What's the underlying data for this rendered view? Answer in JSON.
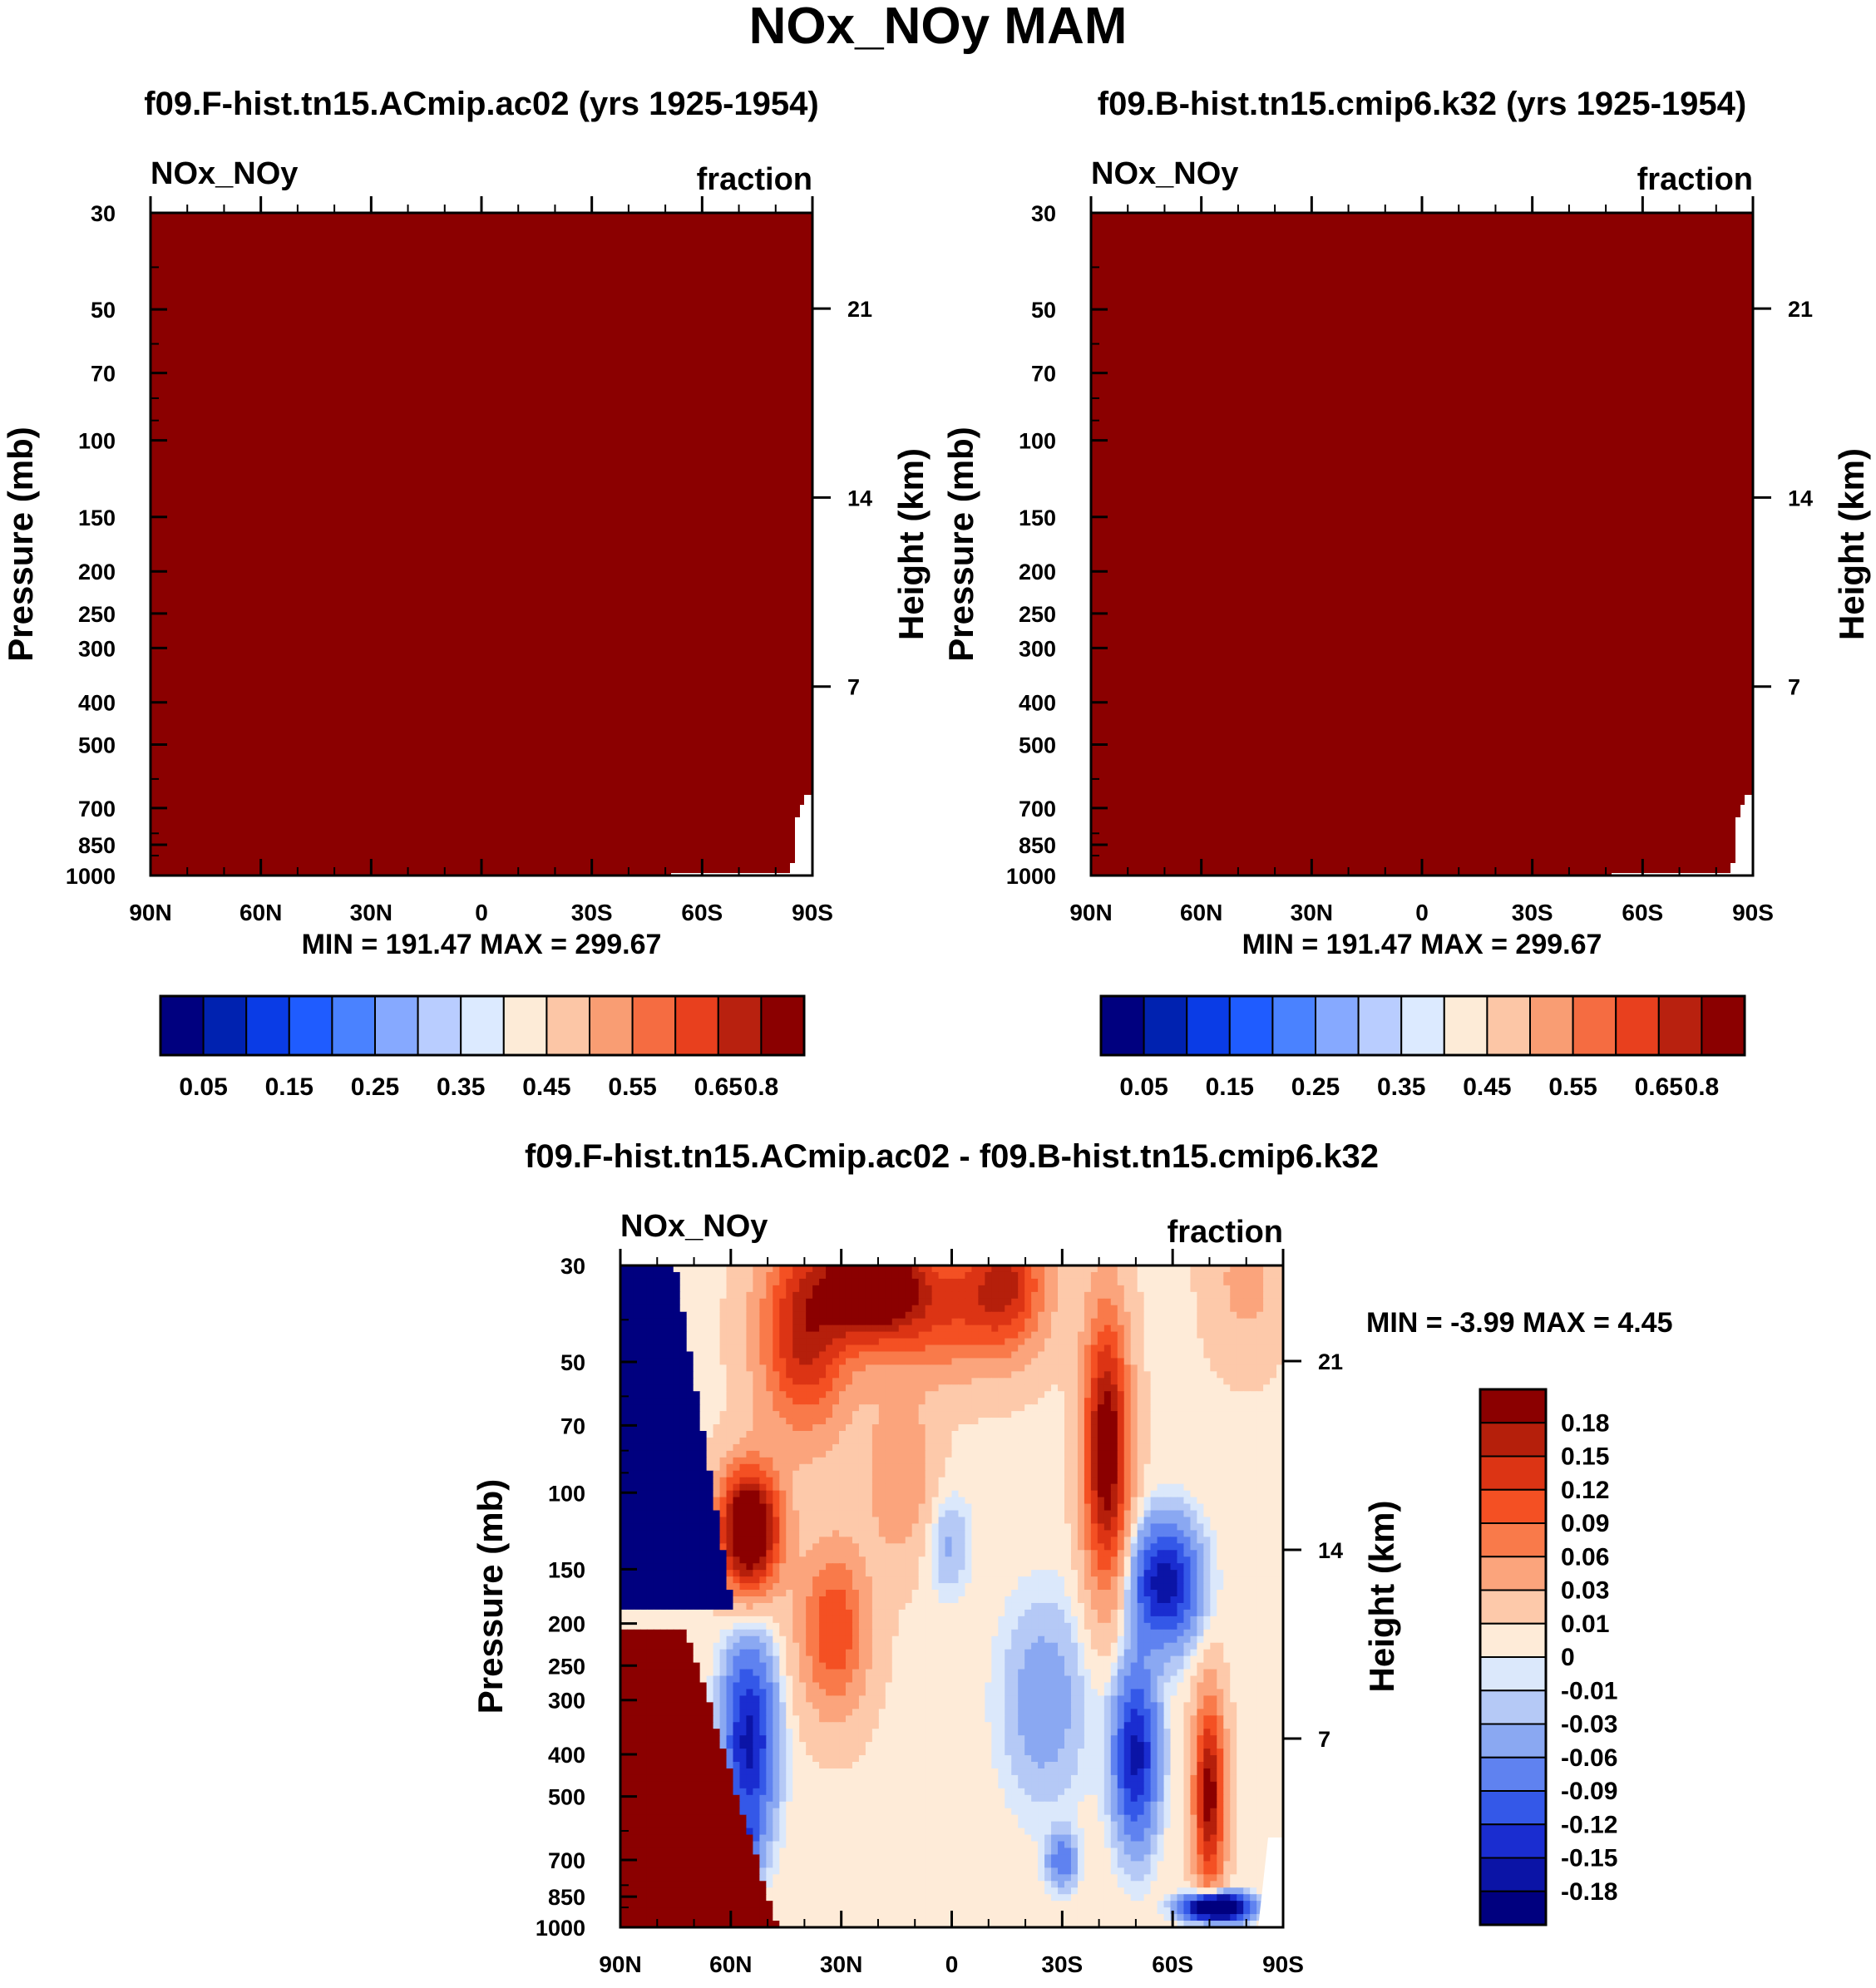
{
  "page_title": "NOx_NOy MAM",
  "chart_data": [
    {
      "type": "heatmap",
      "title": "f09.F-hist.tn15.ACmip.ac02 (yrs 1925-1954)",
      "left_label": "NOx_NOy",
      "right_label": "fraction",
      "ylabel": "Pressure (mb)",
      "ylabel_right": "Height (km)",
      "x_ticks": [
        "90N",
        "60N",
        "30N",
        "0",
        "30S",
        "60S",
        "90S"
      ],
      "y_ticks": [
        "30",
        "50",
        "70",
        "100",
        "150",
        "200",
        "250",
        "300",
        "400",
        "500",
        "700",
        "850",
        "1000"
      ],
      "height_ticks": [
        "21",
        "14",
        "7"
      ],
      "min_max": "MIN = 191.47  MAX = 299.67",
      "fill_color": "#8b0000",
      "colorbar_labels": [
        "0.05",
        "0.15",
        "0.25",
        "0.35",
        "0.45",
        "0.55",
        "0.65",
        "0.8"
      ]
    },
    {
      "type": "heatmap",
      "title": "f09.B-hist.tn15.cmip6.k32 (yrs 1925-1954)",
      "left_label": "NOx_NOy",
      "right_label": "fraction",
      "ylabel": "Pressure (mb)",
      "ylabel_right": "Height (km)",
      "x_ticks": [
        "90N",
        "60N",
        "30N",
        "0",
        "30S",
        "60S",
        "90S"
      ],
      "y_ticks": [
        "30",
        "50",
        "70",
        "100",
        "150",
        "200",
        "250",
        "300",
        "400",
        "500",
        "700",
        "850",
        "1000"
      ],
      "height_ticks": [
        "21",
        "14",
        "7"
      ],
      "min_max": "MIN = 191.47  MAX = 299.67",
      "fill_color": "#8b0000",
      "colorbar_labels": [
        "0.05",
        "0.15",
        "0.25",
        "0.35",
        "0.45",
        "0.55",
        "0.65",
        "0.8"
      ]
    },
    {
      "type": "heatmap",
      "title": "f09.F-hist.tn15.ACmip.ac02 - f09.B-hist.tn15.cmip6.k32",
      "left_label": "NOx_NOy",
      "right_label": "fraction",
      "ylabel": "Pressure (mb)",
      "ylabel_right": "Height (km)",
      "x_ticks": [
        "90N",
        "60N",
        "30N",
        "0",
        "30S",
        "60S",
        "90S"
      ],
      "y_ticks": [
        "30",
        "50",
        "70",
        "100",
        "150",
        "200",
        "250",
        "300",
        "400",
        "500",
        "700",
        "850",
        "1000"
      ],
      "height_ticks": [
        "21",
        "14",
        "7"
      ],
      "min_max": "MIN =  -3.99  MAX =   4.45",
      "colorbar_labels": [
        "0.18",
        "0.15",
        "0.12",
        "0.09",
        "0.06",
        "0.03",
        "0.01",
        "0",
        "-0.01",
        "-0.03",
        "-0.06",
        "-0.09",
        "-0.12",
        "-0.15",
        "-0.18"
      ]
    }
  ],
  "colors": {
    "seq_palette": [
      "#00007f",
      "#0022b0",
      "#0a3ce6",
      "#1f5cff",
      "#4a82ff",
      "#86a9ff",
      "#b9cdff",
      "#dceaff",
      "#fdebd7",
      "#fcc6a6",
      "#f99d73",
      "#f56c41",
      "#e8401e",
      "#b8210f",
      "#8b0000"
    ],
    "diff_palette": [
      "#8b0000",
      "#b51f0b",
      "#dc3414",
      "#f45023",
      "#f97a4a",
      "#fba47c",
      "#fdc9aa",
      "#feebd8",
      "#dbe8fb",
      "#b5c9f6",
      "#8aa8f2",
      "#5f82f0",
      "#3458e8",
      "#1a2dd0",
      "#0b14a6",
      "#00007f"
    ]
  }
}
